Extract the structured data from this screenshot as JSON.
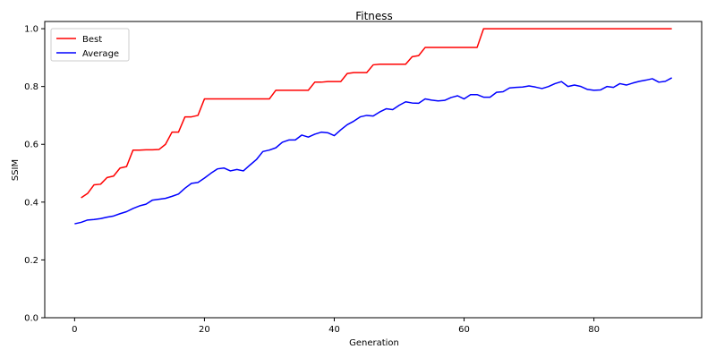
{
  "chart_data": {
    "type": "line",
    "title": "Fitness",
    "xlabel": "Generation",
    "ylabel": "SSIM",
    "xlim": [
      -4.6,
      96.6
    ],
    "ylim": [
      0.0,
      1.025
    ],
    "xticks": [
      0,
      20,
      40,
      60,
      80
    ],
    "yticks": [
      0.0,
      0.2,
      0.4,
      0.6,
      0.8,
      1.0
    ],
    "ytick_labels": [
      "0.0",
      "0.2",
      "0.4",
      "0.6",
      "0.8",
      "1.0"
    ],
    "grid": false,
    "legend_position": "top-left",
    "series": [
      {
        "name": "Best",
        "color": "#ff0000",
        "x": [
          1,
          2,
          3,
          4,
          5,
          6,
          7,
          8,
          9,
          10,
          11,
          12,
          13,
          14,
          15,
          16,
          17,
          18,
          19,
          20,
          21,
          22,
          23,
          24,
          25,
          26,
          27,
          28,
          29,
          30,
          31,
          32,
          33,
          34,
          35,
          36,
          37,
          38,
          39,
          40,
          41,
          42,
          43,
          44,
          45,
          46,
          47,
          48,
          49,
          50,
          51,
          52,
          53,
          54,
          55,
          56,
          57,
          58,
          59,
          60,
          61,
          62,
          63,
          64,
          65,
          66,
          67,
          68,
          69,
          70,
          71,
          72,
          73,
          74,
          75,
          76,
          77,
          78,
          79,
          80,
          81,
          82,
          83,
          84,
          85,
          86,
          87,
          88,
          89,
          90,
          91,
          92
        ],
        "values": [
          0.415,
          0.43,
          0.46,
          0.462,
          0.485,
          0.49,
          0.518,
          0.523,
          0.58,
          0.58,
          0.581,
          0.581,
          0.582,
          0.6,
          0.642,
          0.642,
          0.695,
          0.695,
          0.7,
          0.757,
          0.757,
          0.757,
          0.757,
          0.757,
          0.757,
          0.757,
          0.757,
          0.757,
          0.757,
          0.757,
          0.787,
          0.787,
          0.787,
          0.787,
          0.787,
          0.787,
          0.815,
          0.815,
          0.817,
          0.817,
          0.817,
          0.845,
          0.848,
          0.848,
          0.848,
          0.875,
          0.877,
          0.877,
          0.877,
          0.877,
          0.877,
          0.903,
          0.907,
          0.935,
          0.935,
          0.935,
          0.935,
          0.935,
          0.935,
          0.935,
          0.935,
          0.935,
          1.0,
          1.0,
          1.0,
          1.0,
          1.0,
          1.0,
          1.0,
          1.0,
          1.0,
          1.0,
          1.0,
          1.0,
          1.0,
          1.0,
          1.0,
          1.0,
          1.0,
          1.0,
          1.0,
          1.0,
          1.0,
          1.0,
          1.0,
          1.0,
          1.0,
          1.0,
          1.0,
          1.0,
          1.0,
          1.0
        ]
      },
      {
        "name": "Average",
        "color": "#0000ff",
        "x": [
          0,
          1,
          2,
          3,
          4,
          5,
          6,
          7,
          8,
          9,
          10,
          11,
          12,
          13,
          14,
          15,
          16,
          17,
          18,
          19,
          20,
          21,
          22,
          23,
          24,
          25,
          26,
          27,
          28,
          29,
          30,
          31,
          32,
          33,
          34,
          35,
          36,
          37,
          38,
          39,
          40,
          41,
          42,
          43,
          44,
          45,
          46,
          47,
          48,
          49,
          50,
          51,
          52,
          53,
          54,
          55,
          56,
          57,
          58,
          59,
          60,
          61,
          62,
          63,
          64,
          65,
          66,
          67,
          68,
          69,
          70,
          71,
          72,
          73,
          74,
          75,
          76,
          77,
          78,
          79,
          80,
          81,
          82,
          83,
          84,
          85,
          86,
          87,
          88,
          89,
          90,
          91,
          92
        ],
        "values": [
          0.325,
          0.33,
          0.338,
          0.34,
          0.343,
          0.348,
          0.352,
          0.36,
          0.367,
          0.378,
          0.387,
          0.393,
          0.407,
          0.41,
          0.413,
          0.42,
          0.428,
          0.448,
          0.465,
          0.468,
          0.483,
          0.5,
          0.515,
          0.518,
          0.508,
          0.513,
          0.508,
          0.528,
          0.547,
          0.575,
          0.58,
          0.588,
          0.607,
          0.615,
          0.615,
          0.632,
          0.625,
          0.635,
          0.642,
          0.64,
          0.63,
          0.65,
          0.668,
          0.68,
          0.695,
          0.7,
          0.698,
          0.712,
          0.723,
          0.72,
          0.735,
          0.747,
          0.743,
          0.742,
          0.757,
          0.753,
          0.75,
          0.752,
          0.762,
          0.768,
          0.757,
          0.772,
          0.772,
          0.763,
          0.763,
          0.78,
          0.782,
          0.795,
          0.797,
          0.798,
          0.802,
          0.798,
          0.793,
          0.8,
          0.81,
          0.817,
          0.8,
          0.805,
          0.8,
          0.79,
          0.787,
          0.788,
          0.8,
          0.797,
          0.81,
          0.805,
          0.812,
          0.818,
          0.822,
          0.827,
          0.815,
          0.818,
          0.83
        ]
      }
    ]
  }
}
